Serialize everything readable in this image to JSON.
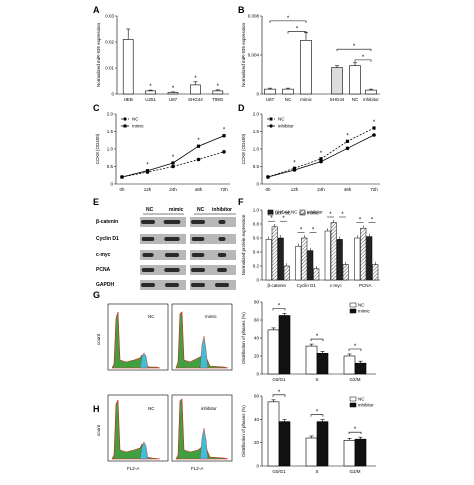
{
  "panels": {
    "A": "A",
    "B": "B",
    "C": "C",
    "D": "D",
    "E": "E",
    "F": "F",
    "G": "G",
    "H": "H"
  },
  "chart_data": [
    {
      "id": "A",
      "type": "bar",
      "ylabel": "Normalized miR-935 expression",
      "ylim": [
        0,
        0.03
      ],
      "yticks": [
        "0",
        "0.01",
        "0.02",
        "0.03"
      ],
      "categories": [
        "HEB",
        "U251",
        "U87",
        "SHG44",
        "T98G"
      ],
      "values": [
        0.021,
        0.0012,
        0.0006,
        0.0035,
        0.0012
      ],
      "errors": [
        0.004,
        0.0003,
        0.0002,
        0.0012,
        0.0004
      ],
      "stars": [
        "",
        "*",
        "*",
        "*",
        "*"
      ]
    },
    {
      "id": "B",
      "type": "bar",
      "ylabel": "Normalized miR-935 expression",
      "ylim": [
        0,
        0.008
      ],
      "yticks": [
        "0",
        "0.004",
        "0.008"
      ],
      "categories": [
        "U87",
        "NC",
        "mimic",
        "SHG44",
        "NC",
        "inhibitor"
      ],
      "values": [
        0.0005,
        0.0005,
        0.0055,
        0.0027,
        0.0029,
        0.0004
      ],
      "errors": [
        0.0001,
        0.0001,
        0.0008,
        0.0002,
        0.0003,
        0.0001
      ],
      "star": "*"
    },
    {
      "id": "C",
      "type": "line",
      "ylabel": "CCK8 (OD450)",
      "ylim": [
        0,
        2
      ],
      "yticks": [
        "0",
        "0.5",
        "1.0",
        "1.5",
        "2.0"
      ],
      "x": [
        "0h",
        "12h",
        "24h",
        "48h",
        "72h"
      ],
      "series": [
        {
          "name": "NC",
          "values": [
            0.2,
            0.34,
            0.5,
            0.7,
            0.92
          ]
        },
        {
          "name": "mimic",
          "values": [
            0.2,
            0.38,
            0.6,
            1.08,
            1.38
          ]
        }
      ],
      "star": "*"
    },
    {
      "id": "D",
      "type": "line",
      "ylabel": "CCK8 (OD450)",
      "ylim": [
        0,
        2
      ],
      "yticks": [
        "0",
        "0.5",
        "1.0",
        "1.5",
        "2.0"
      ],
      "x": [
        "0h",
        "12h",
        "24h",
        "48h",
        "72h"
      ],
      "series": [
        {
          "name": "NC",
          "values": [
            0.2,
            0.45,
            0.72,
            1.22,
            1.6
          ]
        },
        {
          "name": "inhibitor",
          "values": [
            0.2,
            0.4,
            0.64,
            1.02,
            1.4
          ]
        }
      ],
      "star": "*"
    },
    {
      "id": "F",
      "type": "bar",
      "ylabel": "Normalized protein expression",
      "ylim": [
        0,
        1.0
      ],
      "yticks": [
        "0",
        "0.2",
        "0.4",
        "0.6",
        "0.8",
        "1.0"
      ],
      "categories": [
        "β-catenin",
        "Cyclin D1",
        "c-myc",
        "PCNA"
      ],
      "series": [
        {
          "name": "U87 NC",
          "values": [
            0.58,
            0.48,
            0.7,
            0.6
          ]
        },
        {
          "name": "mimic",
          "values": [
            0.76,
            0.6,
            0.82,
            0.74
          ]
        },
        {
          "name": "SHG44 NC",
          "values": [
            0.6,
            0.42,
            0.58,
            0.62
          ]
        },
        {
          "name": "inhibitor",
          "values": [
            0.2,
            0.16,
            0.22,
            0.22
          ]
        }
      ],
      "star": "*"
    },
    {
      "id": "G",
      "type": "bar",
      "ylabel": "Distribution of phases (%)",
      "ylim": [
        0,
        80
      ],
      "yticks": [
        "0",
        "20",
        "40",
        "60",
        "80"
      ],
      "categories": [
        "G0/G1",
        "S",
        "G2/M"
      ],
      "series": [
        {
          "name": "NC",
          "values": [
            49,
            31,
            20
          ]
        },
        {
          "name": "mimic",
          "values": [
            65,
            23,
            12
          ]
        }
      ],
      "star": "*"
    },
    {
      "id": "H",
      "type": "bar",
      "ylabel": "Distribution of phases (%)",
      "ylim": [
        0,
        60
      ],
      "yticks": [
        "0",
        "20",
        "40",
        "60"
      ],
      "categories": [
        "G0/G1",
        "S",
        "G2/M"
      ],
      "series": [
        {
          "name": "NC",
          "values": [
            55,
            24,
            22
          ]
        },
        {
          "name": "inhibitor",
          "values": [
            38,
            38,
            23
          ]
        }
      ],
      "star": "*"
    }
  ],
  "western_blot": {
    "headers": [
      "NC",
      "mimic",
      "NC",
      "inhibitor"
    ],
    "rows": [
      "β-catenin",
      "Cyclin D1",
      "c-myc",
      "PCNA",
      "GAPDH"
    ]
  },
  "flow_cytometry": {
    "G": {
      "labels": [
        "NC",
        "mimic"
      ],
      "ylabel": "count",
      "xlabel": ""
    },
    "H": {
      "labels": [
        "NC",
        "inhibitor"
      ],
      "ylabel": "count",
      "xlabel": "FL2-A"
    }
  },
  "colors": {
    "black": "#111111",
    "white": "#ffffff",
    "hatch": "#888888",
    "blot_bg": "#b8b8b8",
    "band": "#2a2a2a",
    "flow_red": "#d42020",
    "flow_green": "#40a040",
    "flow_cyan": "#3cc0d8"
  }
}
